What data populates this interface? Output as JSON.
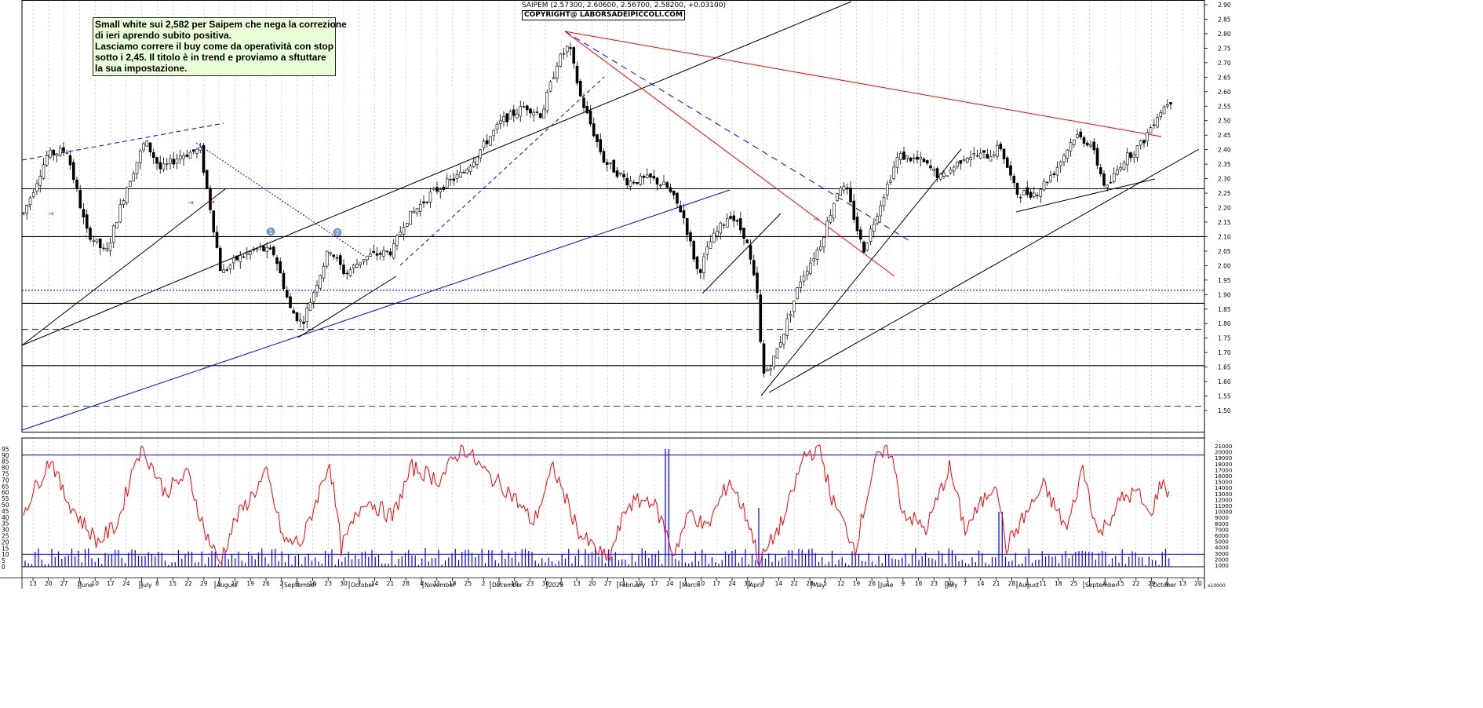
{
  "header": {
    "quote": "SAIPEM (2.57300, 2.60600, 2.56700, 2.58200, +0.03100)",
    "copyright": "COPYRIGHT@ LABORSADEIPICCOLI.COM"
  },
  "note": {
    "lines": [
      "Small white sui 2,582 per Saipem che nega la correzione",
      "di ieri aprendo subito positiva.",
      "Lasciamo correre il buy come da operatività con stop",
      "sotto i 2,45. Il titolo è in trend e proviamo a sftuttare",
      "la sua impostazione."
    ]
  },
  "chart_data": {
    "type": "candlestick",
    "symbol": "SAIPEM",
    "price_axis": {
      "ylim": [
        1.45,
        2.9
      ],
      "ticks": [
        "2.90",
        "2.85",
        "2.80",
        "2.75",
        "2.70",
        "2.65",
        "2.60",
        "2.55",
        "2.50",
        "2.45",
        "2.40",
        "2.35",
        "2.30",
        "2.25",
        "2.20",
        "2.15",
        "2.10",
        "2.05",
        "2.00",
        "1.95",
        "1.90",
        "1.85",
        "1.80",
        "1.75",
        "1.70",
        "1.65",
        "1.60",
        "1.55",
        "1.50"
      ]
    },
    "oscillator_axis": {
      "ylim": [
        0,
        100
      ],
      "ticks": [
        "95",
        "90",
        "85",
        "80",
        "75",
        "70",
        "65",
        "60",
        "55",
        "50",
        "45",
        "40",
        "35",
        "30",
        "25",
        "20",
        "15",
        "10",
        "5",
        "0"
      ]
    },
    "volume_axis": {
      "ticks": [
        "21000",
        "20000",
        "19000",
        "18000",
        "17000",
        "16000",
        "15000",
        "14000",
        "13000",
        "12000",
        "11000",
        "10000",
        "9000",
        "8000",
        "7000",
        "6000",
        "5000",
        "4000",
        "3000",
        "2000",
        "1000"
      ],
      "unit_label": "x10000"
    },
    "x_day_labels": [
      "13",
      "20",
      "27",
      "3",
      "10",
      "17",
      "24",
      "1",
      "8",
      "15",
      "22",
      "29",
      "5",
      "12",
      "19",
      "26",
      "2",
      "9",
      "16",
      "23",
      "30",
      "7",
      "14",
      "21",
      "28",
      "4",
      "11",
      "18",
      "25",
      "2",
      "9",
      "16",
      "23",
      "30",
      "6",
      "13",
      "20",
      "27",
      "3",
      "10",
      "17",
      "24",
      "3",
      "10",
      "17",
      "24",
      "31",
      "7",
      "14",
      "22",
      "28",
      "5",
      "12",
      "19",
      "26",
      "2",
      "9",
      "16",
      "23",
      "30",
      "7",
      "14",
      "21",
      "28",
      "4",
      "11",
      "18",
      "25",
      "1",
      "8",
      "15",
      "22",
      "29",
      "6",
      "13",
      "20"
    ],
    "x_month_labels": [
      "June",
      "July",
      "August",
      "September",
      "October",
      "November",
      "December",
      "2025",
      "February",
      "March",
      "April",
      "May",
      "June",
      "July",
      "August",
      "September",
      "October"
    ],
    "horizontal_levels": [
      {
        "value": 2.265,
        "style": "solid",
        "color": "#000000"
      },
      {
        "value": 2.1,
        "style": "solid",
        "color": "#000000"
      },
      {
        "value": 1.915,
        "style": "dotted",
        "color": "#0000ff"
      },
      {
        "value": 1.87,
        "style": "solid",
        "color": "#000000"
      },
      {
        "value": 1.78,
        "style": "dashed",
        "color": "#000080"
      },
      {
        "value": 1.655,
        "style": "solid",
        "color": "#000000"
      },
      {
        "value": 1.515,
        "style": "dashed",
        "color": "#008000"
      }
    ],
    "oscillator_levels": [
      90,
      10
    ],
    "markers": [
      "1",
      "2"
    ],
    "last_close": 2.582,
    "colors": {
      "oscillator": "#ff0000",
      "volume": "#0000ff",
      "trend_red": "#ff0000",
      "trend_blue": "#0000ff",
      "trend_black": "#000000"
    }
  }
}
